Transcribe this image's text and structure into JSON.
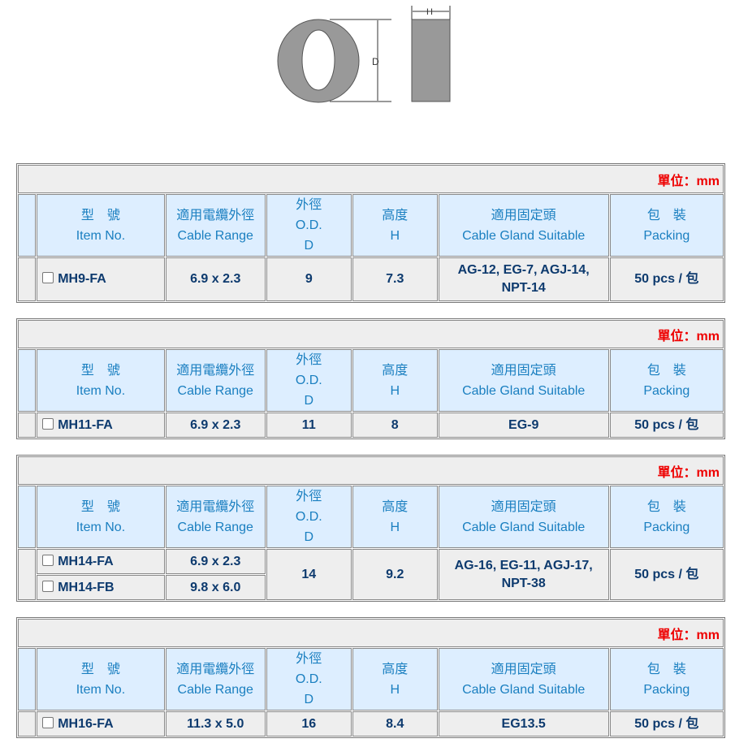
{
  "diagram": {
    "d_label": "D",
    "h_label": "H"
  },
  "unit_label": "單位：mm",
  "headers": {
    "item_zh": "型　號",
    "item_en": "Item No.",
    "cable_zh": "適用電纜外徑",
    "cable_en": "Cable Range",
    "od_zh": "外徑",
    "od_en": "O.D.",
    "od_sym": "D",
    "h_zh": "高度",
    "h_sym": "H",
    "gland_zh": "適用固定頭",
    "gland_en": "Cable Gland Suitable",
    "pack_zh": "包　裝",
    "pack_en": "Packing"
  },
  "tables": [
    {
      "rows": [
        {
          "item": "MH9-FA",
          "cable": "6.9 x 2.3"
        }
      ],
      "od": "9",
      "h": "7.3",
      "gland": "AG-12, EG-7, AGJ-14, NPT-14",
      "packing": "50 pcs / 包"
    },
    {
      "rows": [
        {
          "item": "MH11-FA",
          "cable": "6.9 x 2.3"
        }
      ],
      "od": "11",
      "h": "8",
      "gland": "EG-9",
      "packing": "50 pcs / 包"
    },
    {
      "rows": [
        {
          "item": "MH14-FA",
          "cable": "6.9 x 2.3"
        },
        {
          "item": "MH14-FB",
          "cable": "9.8 x 6.0"
        }
      ],
      "od": "14",
      "h": "9.2",
      "gland": "AG-16, EG-11, AGJ-17, NPT-38",
      "packing": "50 pcs / 包"
    },
    {
      "rows": [
        {
          "item": "MH16-FA",
          "cable": "11.3 x 5.0"
        }
      ],
      "od": "16",
      "h": "8.4",
      "gland": "EG13.5",
      "packing": "50 pcs / 包"
    }
  ]
}
